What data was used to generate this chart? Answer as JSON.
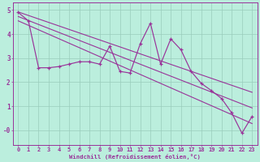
{
  "xlabel": "Windchill (Refroidissement éolien,°C)",
  "bg_color": "#bbeedd",
  "grid_color": "#99ccbb",
  "line_color": "#993399",
  "xlim": [
    -0.5,
    23.5
  ],
  "ylim": [
    -0.6,
    5.3
  ],
  "yticks": [
    0,
    1,
    2,
    3,
    4,
    5
  ],
  "ytick_labels": [
    "-0",
    "1",
    "2",
    "3",
    "4",
    "5"
  ],
  "xticks": [
    0,
    1,
    2,
    3,
    4,
    5,
    6,
    7,
    8,
    9,
    10,
    11,
    12,
    13,
    14,
    15,
    16,
    17,
    18,
    19,
    20,
    21,
    22,
    23
  ],
  "data_x": [
    0,
    1,
    2,
    3,
    4,
    5,
    6,
    7,
    8,
    9,
    10,
    11,
    12,
    13,
    14,
    15,
    16,
    17,
    18,
    19,
    20,
    21,
    22,
    23
  ],
  "data_y": [
    4.9,
    4.55,
    2.6,
    2.6,
    2.65,
    2.75,
    2.85,
    2.85,
    2.75,
    3.5,
    2.45,
    2.38,
    3.6,
    4.45,
    2.75,
    3.8,
    3.35,
    2.45,
    1.95,
    1.65,
    1.32,
    0.72,
    -0.12,
    0.58
  ],
  "upper_line_x": [
    0,
    23
  ],
  "upper_line_y": [
    4.92,
    1.58
  ],
  "lower_line_x": [
    0,
    23
  ],
  "lower_line_y": [
    4.55,
    0.28
  ],
  "middle_line_x": [
    0,
    23
  ],
  "middle_line_y": [
    4.73,
    0.93
  ],
  "tick_fontsize": 5.0,
  "label_fontsize": 5.2
}
